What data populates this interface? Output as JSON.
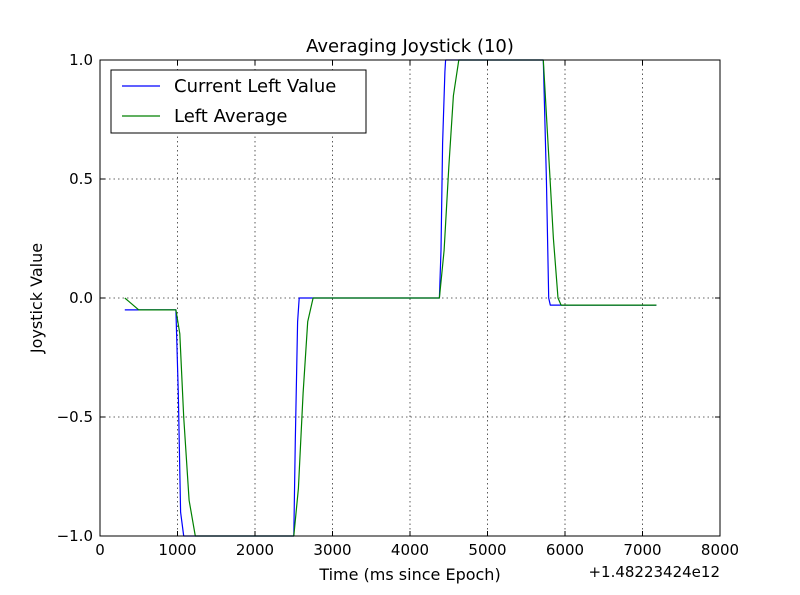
{
  "chart_data": {
    "type": "line",
    "title": "Averaging Joystick (10)",
    "xlabel": "Time (ms since Epoch)",
    "ylabel": "Joystick Value",
    "x_offset_label": "+1.48223424e12",
    "xlim": [
      0,
      8000
    ],
    "ylim": [
      -1.0,
      1.0
    ],
    "x_ticks": [
      0,
      1000,
      2000,
      3000,
      4000,
      5000,
      6000,
      7000,
      8000
    ],
    "y_ticks": [
      -1.0,
      -0.5,
      0.0,
      0.5,
      1.0
    ],
    "y_tick_labels": [
      "−1.0",
      "−0.5",
      "0.0",
      "0.5",
      "1.0"
    ],
    "grid": true,
    "legend_position": "top-left",
    "series": [
      {
        "name": "Current Left Value",
        "color": "#0000ff",
        "points": [
          [
            320,
            -0.05
          ],
          [
            980,
            -0.05
          ],
          [
            1010,
            -0.4
          ],
          [
            1040,
            -0.9
          ],
          [
            1080,
            -1.0
          ],
          [
            2500,
            -1.0
          ],
          [
            2520,
            -0.6
          ],
          [
            2550,
            -0.1
          ],
          [
            2570,
            0.0
          ],
          [
            4380,
            0.0
          ],
          [
            4400,
            0.2
          ],
          [
            4420,
            0.65
          ],
          [
            4450,
            0.95
          ],
          [
            4460,
            1.0
          ],
          [
            5720,
            1.0
          ],
          [
            5760,
            0.5
          ],
          [
            5790,
            0.0
          ],
          [
            5810,
            -0.03
          ],
          [
            7180,
            -0.03
          ]
        ]
      },
      {
        "name": "Left Average",
        "color": "#008000",
        "points": [
          [
            320,
            0.0
          ],
          [
            500,
            -0.05
          ],
          [
            980,
            -0.05
          ],
          [
            1030,
            -0.15
          ],
          [
            1080,
            -0.5
          ],
          [
            1150,
            -0.85
          ],
          [
            1230,
            -1.0
          ],
          [
            2500,
            -1.0
          ],
          [
            2560,
            -0.8
          ],
          [
            2620,
            -0.4
          ],
          [
            2680,
            -0.1
          ],
          [
            2750,
            0.0
          ],
          [
            4380,
            0.0
          ],
          [
            4440,
            0.2
          ],
          [
            4500,
            0.55
          ],
          [
            4560,
            0.85
          ],
          [
            4630,
            1.0
          ],
          [
            5720,
            1.0
          ],
          [
            5790,
            0.6
          ],
          [
            5850,
            0.25
          ],
          [
            5910,
            0.0
          ],
          [
            5950,
            -0.03
          ],
          [
            7180,
            -0.03
          ]
        ]
      }
    ]
  }
}
